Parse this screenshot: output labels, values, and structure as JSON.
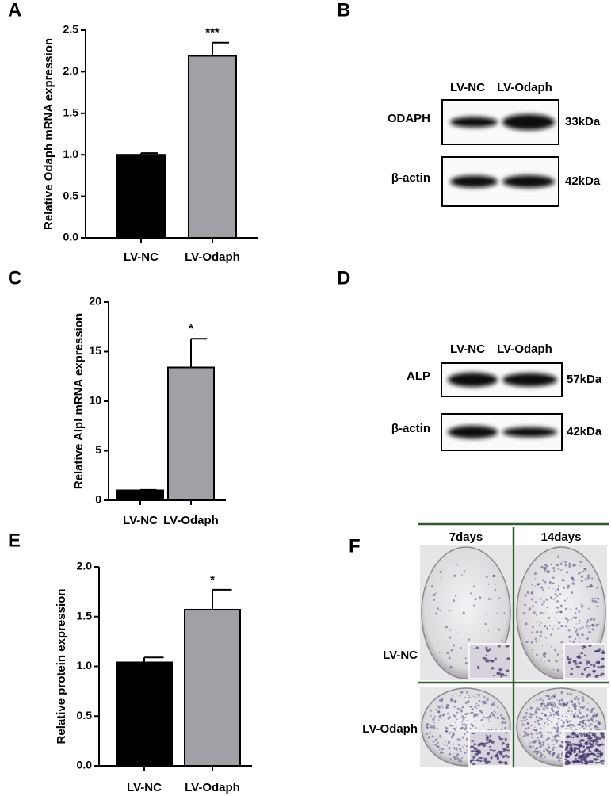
{
  "panel_labels": [
    "A",
    "B",
    "C",
    "D",
    "E",
    "F"
  ],
  "chart_data": [
    {
      "type": "bar",
      "ylabel": "Relative Odaph mRNA expression",
      "categories": [
        "LV-NC",
        "LV-Odaph"
      ],
      "values": [
        1.0,
        2.19
      ],
      "errors": [
        0.02,
        0.16
      ],
      "colors": [
        "#000000",
        "#a0a0a6"
      ],
      "annotations": [
        null,
        "***"
      ],
      "ylim": [
        0,
        2.5
      ],
      "yticks": [
        {
          "value": 0,
          "label": "0.0"
        },
        0.5,
        {
          "value": 1,
          "label": "1.0"
        },
        1.5,
        {
          "value": 2,
          "label": "2.0"
        },
        2.5
      ]
    },
    {
      "type": "bar",
      "ylabel": "Relative Alpl mRNA expression",
      "categories": [
        "LV-NC",
        "LV-Odaph"
      ],
      "values": [
        1.0,
        13.4
      ],
      "errors": [
        0.05,
        2.9
      ],
      "colors": [
        "#000000",
        "#a0a0a6"
      ],
      "annotations": [
        null,
        "*"
      ],
      "ylim": [
        0,
        20
      ],
      "yticks": [
        0,
        5,
        10,
        15,
        20
      ]
    },
    {
      "type": "bar",
      "ylabel": "Relative protein expression",
      "categories": [
        "LV-NC",
        "LV-Odaph"
      ],
      "values": [
        1.04,
        1.57
      ],
      "errors": [
        0.05,
        0.2
      ],
      "colors": [
        "#000000",
        "#a0a0a6"
      ],
      "annotations": [
        null,
        "*"
      ],
      "ylim": [
        0,
        2.0
      ],
      "yticks": [
        {
          "value": 0,
          "label": "0.0"
        },
        0.5,
        {
          "value": 1,
          "label": "1.0"
        },
        1.5,
        {
          "value": 2,
          "label": "2.0"
        }
      ]
    }
  ],
  "blots": [
    {
      "lanes": [
        "LV-NC",
        "LV-Odaph"
      ],
      "rows": [
        {
          "protein": "ODAPH",
          "size": "33kDa"
        },
        {
          "protein": "β-actin",
          "size": "42kDa"
        }
      ]
    },
    {
      "lanes": [
        "LV-NC",
        "LV-Odaph"
      ],
      "rows": [
        {
          "protein": "ALP",
          "size": "57kDa"
        },
        {
          "protein": "β-actin",
          "size": "42kDa"
        }
      ]
    }
  ],
  "staining": {
    "columns": [
      "7days",
      "14days"
    ],
    "rows": [
      "LV-NC",
      "LV-Odaph"
    ]
  }
}
